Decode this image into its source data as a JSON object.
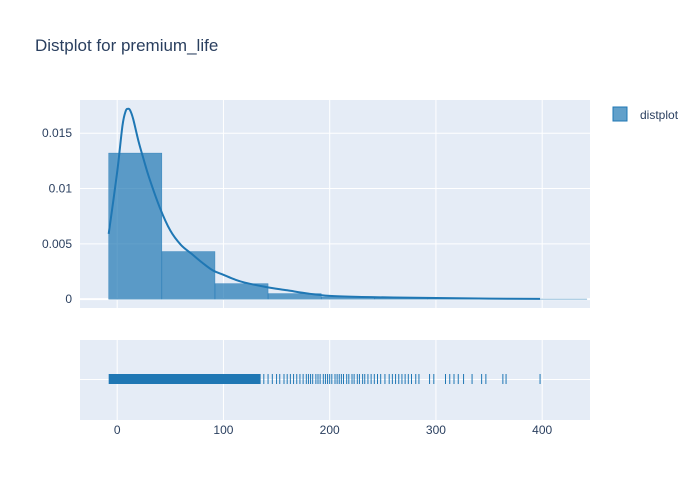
{
  "chart_data": {
    "type": "histogram",
    "title": "Distplot for premium_life",
    "legend": {
      "entries": [
        "distplot"
      ],
      "placement": "top-right"
    },
    "colors": {
      "bar": "#1f77b4",
      "plot_bg": "#e5ecf6",
      "grid": "#ffffff",
      "text": "#2a3f5f"
    },
    "grid": true,
    "x_axis": {
      "range": [
        -35,
        445
      ],
      "ticks": [
        0,
        100,
        200,
        300,
        400
      ]
    },
    "y_axis": {
      "range": [
        -0.0008,
        0.018
      ],
      "ticks": [
        0,
        0.005,
        0.01,
        0.015
      ],
      "tick_labels": [
        "0",
        "0.005",
        "0.01",
        "0.015"
      ]
    },
    "histogram": {
      "bin_edges": [
        -8,
        42,
        92,
        142,
        192,
        242,
        292,
        342,
        392,
        442
      ],
      "values": [
        0.0132,
        0.0043,
        0.0014,
        0.0005,
        0.0002,
        8e-05,
        4e-05,
        2e-05,
        1e-05
      ]
    },
    "kde": {
      "x": [
        -8,
        0,
        5,
        8,
        10,
        12,
        15,
        20,
        25,
        30,
        40,
        50,
        60,
        70,
        80,
        90,
        100,
        110,
        120,
        140,
        160,
        180,
        200,
        230,
        260,
        300,
        350,
        398
      ],
      "y": [
        0.0059,
        0.0115,
        0.0157,
        0.017,
        0.0172,
        0.0171,
        0.0163,
        0.0143,
        0.0126,
        0.011,
        0.0083,
        0.0062,
        0.0049,
        0.0041,
        0.0033,
        0.0026,
        0.0022,
        0.0018,
        0.0015,
        0.0011,
        0.0008,
        0.0005,
        0.0003,
        0.0002,
        0.00015,
        0.0001,
        5e-05,
        2e-05
      ]
    },
    "rug": {
      "dense_range": [
        -8,
        135
      ],
      "points": [
        138,
        142,
        146,
        150,
        153,
        157,
        160,
        163,
        166,
        169,
        172,
        175,
        178,
        180,
        182,
        184,
        187,
        189,
        191,
        194,
        196,
        198,
        200,
        202,
        205,
        207,
        209,
        211,
        213,
        216,
        218,
        221,
        223,
        226,
        228,
        231,
        233,
        236,
        239,
        242,
        245,
        248,
        252,
        256,
        259,
        262,
        265,
        268,
        271,
        274,
        277,
        281,
        284,
        294,
        298,
        309,
        313,
        317,
        321,
        326,
        334,
        343,
        347,
        363,
        366,
        398
      ]
    }
  }
}
